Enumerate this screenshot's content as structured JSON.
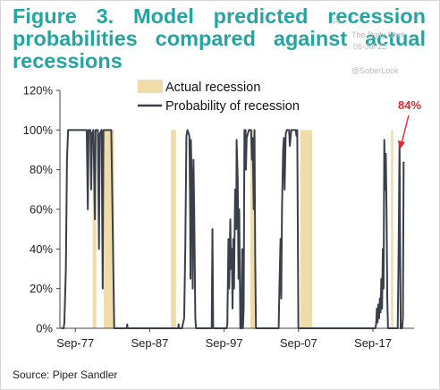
{
  "header": {
    "title": "Figure 3. Model predicted recession probabilities compared against actual recessions"
  },
  "watermark": {
    "brand": "The Daily Shot",
    "date": "06-Jul-22",
    "handle": "@SoberLook",
    "fragment": "Pr"
  },
  "footer": {
    "source": "Source: Piper Sandler"
  },
  "colors": {
    "title": "#25a4a4",
    "recession_band": "#efdca8",
    "line": "#3a3f4a",
    "annotation": "#e0262b"
  },
  "chart_data": {
    "type": "line",
    "title": "Figure 3. Model predicted recession probabilities compared against actual recessions",
    "xlabel": "",
    "ylabel": "",
    "x_range": [
      1975.6,
      2023.2
    ],
    "ylim": [
      0,
      120
    ],
    "y_ticks": [
      0,
      20,
      40,
      60,
      80,
      100,
      120
    ],
    "y_tick_labels": [
      "0%",
      "20%",
      "40%",
      "60%",
      "80%",
      "100%",
      "120%"
    ],
    "x_ticks": [
      1977.67,
      1987.67,
      1997.67,
      2007.67,
      2017.67
    ],
    "x_tick_labels": [
      "Sep-77",
      "Sep-87",
      "Sep-97",
      "Sep-07",
      "Sep-17"
    ],
    "grid": false,
    "legend": {
      "position": "top",
      "entries": [
        "Actual recession",
        "Probability of recession"
      ]
    },
    "recessions": [
      {
        "start": 1980.0,
        "end": 1980.5
      },
      {
        "start": 1981.5,
        "end": 1982.9
      },
      {
        "start": 1990.5,
        "end": 1991.2
      },
      {
        "start": 2001.2,
        "end": 2001.9
      },
      {
        "start": 2007.9,
        "end": 2009.5
      },
      {
        "start": 2020.1,
        "end": 2020.4
      }
    ],
    "series": [
      {
        "name": "Probability of recession",
        "points": [
          [
            1975.8,
            0
          ],
          [
            1976.1,
            0
          ],
          [
            1976.2,
            3
          ],
          [
            1976.4,
            30
          ],
          [
            1976.55,
            85
          ],
          [
            1976.7,
            100
          ],
          [
            1978.0,
            100
          ],
          [
            1979.2,
            100
          ],
          [
            1979.35,
            60
          ],
          [
            1979.45,
            100
          ],
          [
            1979.7,
            100
          ],
          [
            1979.8,
            70
          ],
          [
            1979.9,
            98
          ],
          [
            1980.1,
            100
          ],
          [
            1980.3,
            55
          ],
          [
            1980.4,
            100
          ],
          [
            1980.7,
            100
          ],
          [
            1980.85,
            40
          ],
          [
            1980.95,
            98
          ],
          [
            1981.2,
            100
          ],
          [
            1981.35,
            20
          ],
          [
            1981.45,
            100
          ],
          [
            1982.5,
            100
          ],
          [
            1982.9,
            0
          ],
          [
            1983.5,
            0
          ],
          [
            1984.6,
            0
          ],
          [
            1984.65,
            2
          ],
          [
            1984.7,
            0
          ],
          [
            1991.5,
            0
          ],
          [
            1991.55,
            2
          ],
          [
            1991.6,
            0
          ],
          [
            1992.0,
            0
          ],
          [
            1992.3,
            5
          ],
          [
            1992.45,
            40
          ],
          [
            1992.6,
            97
          ],
          [
            1992.75,
            100
          ],
          [
            1993.0,
            97
          ],
          [
            1993.1,
            60
          ],
          [
            1993.15,
            25
          ],
          [
            1993.2,
            95
          ],
          [
            1993.35,
            70
          ],
          [
            1993.45,
            20
          ],
          [
            1993.55,
            85
          ],
          [
            1993.65,
            60
          ],
          [
            1993.8,
            5
          ],
          [
            1993.9,
            0
          ],
          [
            1994.5,
            0
          ],
          [
            1996.0,
            0
          ],
          [
            1996.1,
            50
          ],
          [
            1996.2,
            0
          ],
          [
            1998.0,
            0
          ],
          [
            1998.1,
            2
          ],
          [
            1998.25,
            45
          ],
          [
            1998.35,
            20
          ],
          [
            1998.5,
            55
          ],
          [
            1998.6,
            30
          ],
          [
            1998.7,
            40
          ],
          [
            1998.8,
            10
          ],
          [
            1998.9,
            45
          ],
          [
            1999.0,
            20
          ],
          [
            1999.15,
            70
          ],
          [
            1999.3,
            50
          ],
          [
            1999.35,
            95
          ],
          [
            1999.5,
            75
          ],
          [
            1999.6,
            25
          ],
          [
            1999.7,
            60
          ],
          [
            1999.85,
            0
          ],
          [
            2000.0,
            0
          ],
          [
            2000.1,
            40
          ],
          [
            2000.2,
            0
          ],
          [
            2000.3,
            10
          ],
          [
            2000.4,
            100
          ],
          [
            2000.55,
            100
          ],
          [
            2000.6,
            80
          ],
          [
            2000.7,
            96
          ],
          [
            2001.0,
            100
          ],
          [
            2001.3,
            100
          ],
          [
            2001.4,
            85
          ],
          [
            2001.5,
            96
          ],
          [
            2001.65,
            60
          ],
          [
            2001.75,
            100
          ],
          [
            2001.85,
            35
          ],
          [
            2001.95,
            0
          ],
          [
            2002.3,
            0
          ],
          [
            2004.0,
            0
          ],
          [
            2005.0,
            0
          ],
          [
            2005.1,
            20
          ],
          [
            2005.25,
            45
          ],
          [
            2005.35,
            15
          ],
          [
            2005.45,
            60
          ],
          [
            2005.6,
            90
          ],
          [
            2005.7,
            96
          ],
          [
            2005.8,
            70
          ],
          [
            2005.95,
            98
          ],
          [
            2006.1,
            100
          ],
          [
            2006.4,
            100
          ],
          [
            2006.5,
            92
          ],
          [
            2006.7,
            100
          ],
          [
            2007.3,
            100
          ],
          [
            2007.4,
            97
          ],
          [
            2007.5,
            100
          ],
          [
            2007.65,
            0
          ],
          [
            2008.5,
            0
          ],
          [
            2013.0,
            0
          ],
          [
            2018.0,
            0
          ],
          [
            2018.1,
            2
          ],
          [
            2018.2,
            10
          ],
          [
            2018.3,
            3
          ],
          [
            2018.4,
            12
          ],
          [
            2018.5,
            5
          ],
          [
            2018.6,
            15
          ],
          [
            2018.7,
            8
          ],
          [
            2018.8,
            25
          ],
          [
            2018.9,
            10
          ],
          [
            2019.0,
            40
          ],
          [
            2019.1,
            20
          ],
          [
            2019.2,
            95
          ],
          [
            2019.3,
            70
          ],
          [
            2019.4,
            88
          ],
          [
            2019.5,
            60
          ],
          [
            2019.6,
            15
          ],
          [
            2019.7,
            0
          ],
          [
            2020.5,
            0
          ],
          [
            2021.0,
            0
          ],
          [
            2021.1,
            30
          ],
          [
            2021.25,
            94
          ],
          [
            2021.3,
            60
          ],
          [
            2021.4,
            0
          ],
          [
            2021.6,
            0
          ],
          [
            2021.7,
            5
          ],
          [
            2021.8,
            84
          ]
        ]
      }
    ],
    "annotations": [
      {
        "text": "84%",
        "x": 2021.8,
        "y": 84
      }
    ]
  }
}
